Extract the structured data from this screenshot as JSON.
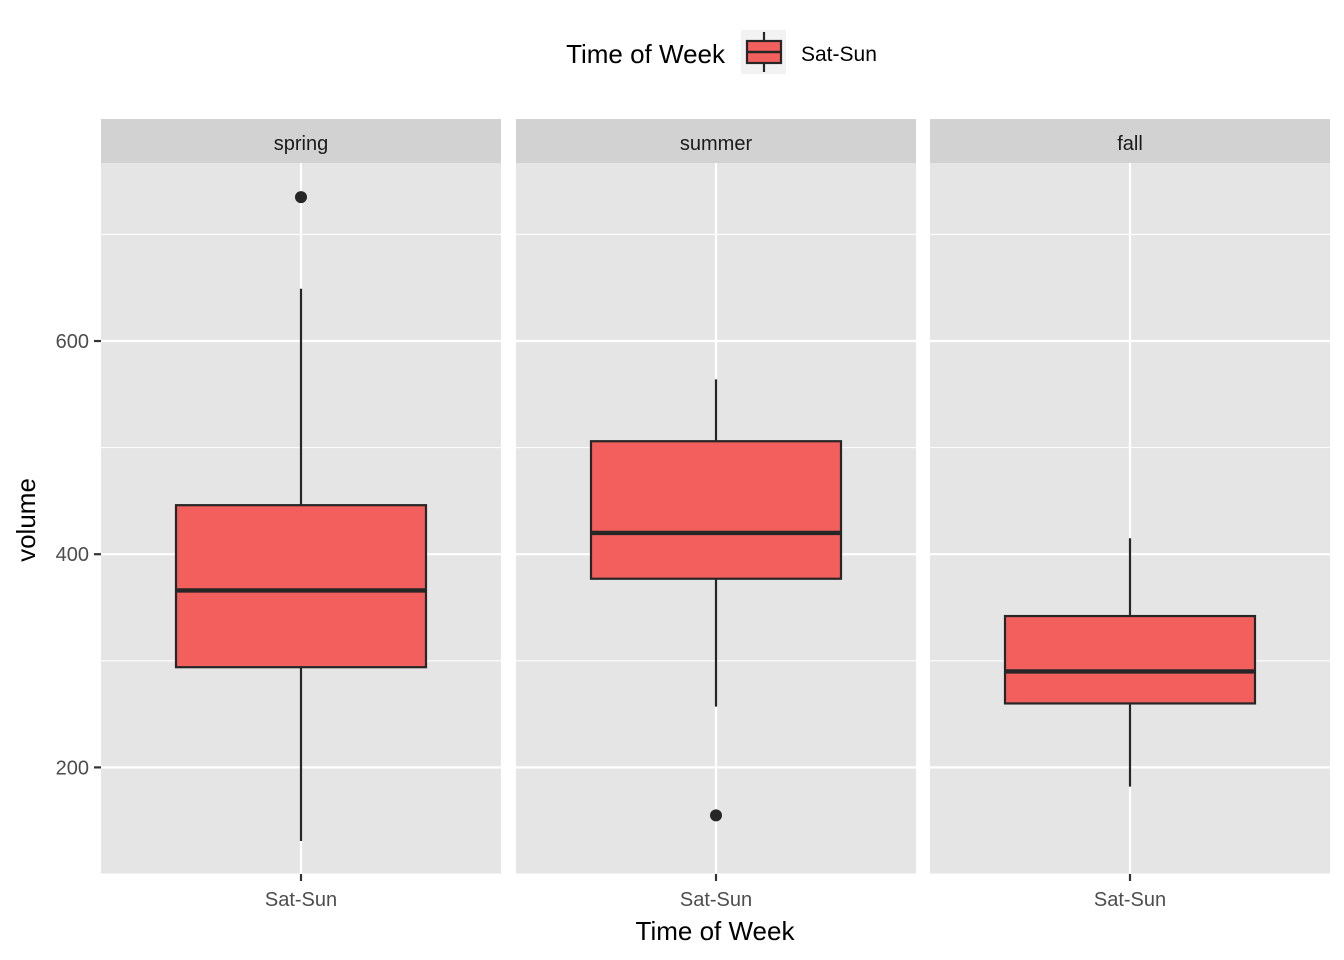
{
  "chart_data": {
    "type": "boxplot",
    "facet_by": "season",
    "panels": [
      {
        "facet": "spring",
        "category": "Sat-Sun",
        "whisker_low": 131,
        "q1": 294,
        "median": 366,
        "q3": 446,
        "whisker_high": 649,
        "outliers": [
          735
        ]
      },
      {
        "facet": "summer",
        "category": "Sat-Sun",
        "whisker_low": 257,
        "q1": 377,
        "median": 420,
        "q3": 506,
        "whisker_high": 564,
        "outliers": [
          155
        ]
      },
      {
        "facet": "fall",
        "category": "Sat-Sun",
        "whisker_low": 182,
        "q1": 260,
        "median": 290,
        "q3": 342,
        "whisker_high": 415,
        "outliers": []
      }
    ],
    "xlabel": "Time of Week",
    "ylabel": "volume",
    "ylim": [
      100,
      767
    ],
    "y_ticks": [
      200,
      400,
      600
    ],
    "legend": {
      "title": "Time of Week",
      "entries": [
        "Sat-Sun"
      ],
      "position": "top"
    },
    "grid": true,
    "colors": {
      "box_fill": "#F35F5C",
      "box_line": "#262626",
      "panel_bg": "#E5E5E5",
      "strip_bg": "#D2D2D2",
      "grid_line": "#FFFFFF"
    }
  }
}
